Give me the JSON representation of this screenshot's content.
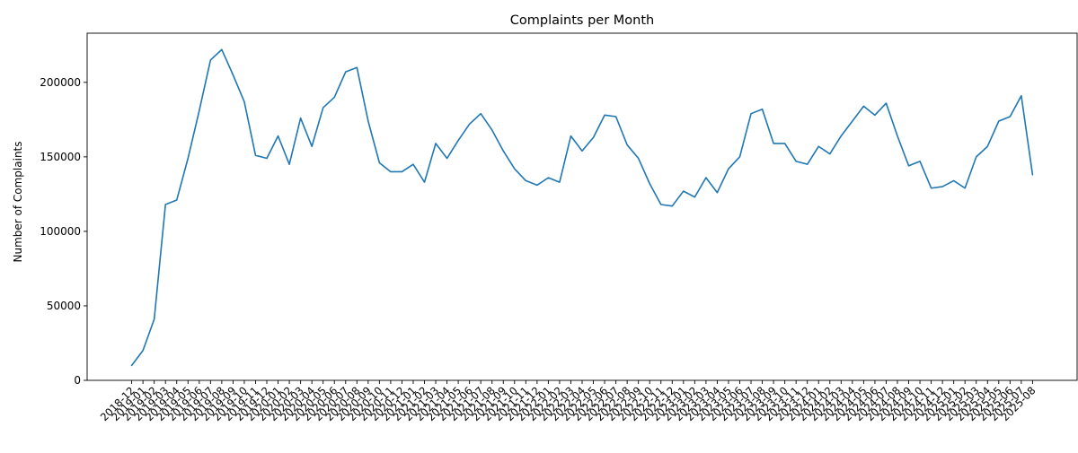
{
  "chart_data": {
    "type": "line",
    "title": "Complaints per Month",
    "xlabel": "",
    "ylabel": "Number of Complaints",
    "ylim": [
      0,
      233000
    ],
    "yticks": [
      0,
      50000,
      100000,
      150000,
      200000
    ],
    "grid": false,
    "legend": "none",
    "line_color": "#1f77b4",
    "x": [
      "2018-12",
      "2019-01",
      "2019-02",
      "2019-03",
      "2019-04",
      "2019-05",
      "2019-06",
      "2019-07",
      "2019-08",
      "2019-09",
      "2019-10",
      "2019-11",
      "2019-12",
      "2020-01",
      "2020-02",
      "2020-03",
      "2020-04",
      "2020-05",
      "2020-06",
      "2020-07",
      "2020-08",
      "2020-09",
      "2020-10",
      "2020-11",
      "2020-12",
      "2021-01",
      "2021-02",
      "2021-03",
      "2021-04",
      "2021-05",
      "2021-06",
      "2021-07",
      "2021-08",
      "2021-09",
      "2021-10",
      "2021-11",
      "2021-12",
      "2022-01",
      "2022-02",
      "2022-03",
      "2022-04",
      "2022-05",
      "2022-06",
      "2022-07",
      "2022-08",
      "2022-09",
      "2022-10",
      "2022-11",
      "2022-12",
      "2023-01",
      "2023-02",
      "2023-03",
      "2023-04",
      "2023-05",
      "2023-06",
      "2023-07",
      "2023-08",
      "2023-09",
      "2023-10",
      "2023-11",
      "2023-12",
      "2024-01",
      "2024-02",
      "2024-03",
      "2024-04",
      "2024-05",
      "2024-06",
      "2024-07",
      "2024-08",
      "2024-09",
      "2024-10",
      "2024-11",
      "2024-12",
      "2025-01",
      "2025-02",
      "2025-03",
      "2025-04",
      "2025-05",
      "2025-06",
      "2025-07",
      "2025-08"
    ],
    "series": [
      {
        "name": "",
        "values": [
          10000,
          20000,
          41000,
          118000,
          121000,
          149000,
          181000,
          215000,
          222000,
          205000,
          187000,
          151000,
          149000,
          164000,
          145000,
          176000,
          157000,
          183000,
          190000,
          207000,
          210000,
          174000,
          146000,
          140000,
          140000,
          145000,
          133000,
          159000,
          149000,
          161000,
          172000,
          179000,
          168000,
          154000,
          142000,
          134000,
          131000,
          136000,
          133000,
          164000,
          154000,
          163000,
          178000,
          177000,
          158000,
          149000,
          132000,
          118000,
          117000,
          127000,
          123000,
          136000,
          126000,
          142000,
          150000,
          179000,
          182000,
          159000,
          159000,
          147000,
          145000,
          157000,
          152000,
          164000,
          174000,
          184000,
          178000,
          186000,
          164000,
          144000,
          147000,
          129000,
          130000,
          134000,
          129000,
          150000,
          157000,
          174000,
          177000,
          191000,
          138000
        ]
      }
    ]
  }
}
